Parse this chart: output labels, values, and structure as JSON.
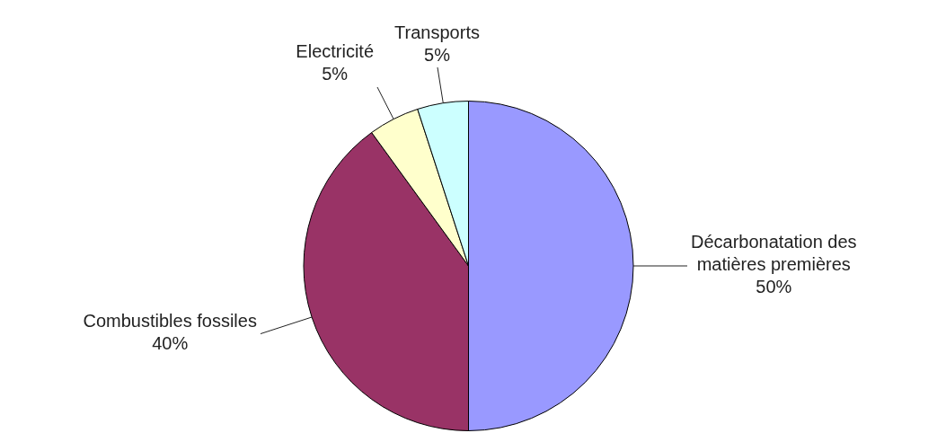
{
  "chart_data": {
    "type": "pie",
    "categories": [
      "Décarbonatation des matières premières",
      "Combustibles fossiles",
      "Electricité",
      "Transports"
    ],
    "values": [
      50,
      40,
      5,
      5
    ],
    "colors": [
      "#9999ff",
      "#993366",
      "#ffffcc",
      "#ccffff"
    ],
    "value_labels": [
      "50%",
      "40%",
      "5%",
      "5%"
    ],
    "legend": false
  }
}
